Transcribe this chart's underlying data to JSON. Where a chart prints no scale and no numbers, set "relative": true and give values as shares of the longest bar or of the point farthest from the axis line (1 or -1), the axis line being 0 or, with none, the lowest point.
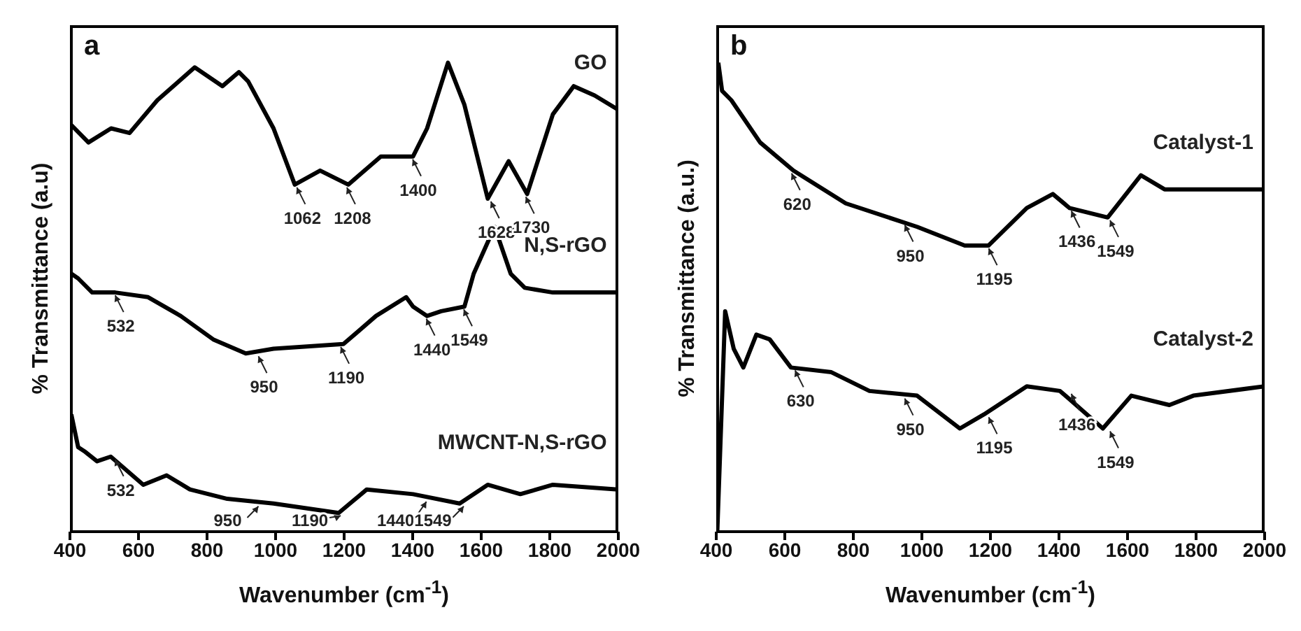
{
  "chart_data": [
    {
      "type": "line",
      "relative": true,
      "xlabel": "Wavenumber (cm$^{-1}$)",
      "ylabel": "% Transmittance (a.u)",
      "xlim": [
        400,
        2000
      ],
      "xticks": [
        400,
        600,
        800,
        1000,
        1200,
        1400,
        1600,
        1800,
        2000
      ],
      "grid": false,
      "legend": false,
      "marker": "none",
      "line_style": "solid",
      "annotations": [
        "a",
        {
          "text": "1062",
          "x": 1062,
          "y": 0.74
        },
        {
          "text": "1208",
          "x": 1208,
          "y": 0.74
        },
        {
          "text": "1400",
          "x": 1400,
          "y": 0.8
        },
        {
          "text": "1628",
          "x": 1628,
          "y": 0.71
        },
        {
          "text": "1730",
          "x": 1730,
          "y": 0.72
        },
        {
          "text": "532",
          "x": 532,
          "y": 0.51
        },
        {
          "text": "950",
          "x": 950,
          "y": 0.38
        },
        {
          "text": "1190",
          "x": 1190,
          "y": 0.4
        },
        {
          "text": "1440",
          "x": 1440,
          "y": 0.46
        },
        {
          "text": "1549",
          "x": 1549,
          "y": 0.48
        },
        {
          "text": "532",
          "x": 532,
          "y": 0.16
        },
        {
          "text": "950",
          "x": 950,
          "y": 0.06
        },
        {
          "text": "1190",
          "x": 1190,
          "y": 0.04
        },
        {
          "text": "1440",
          "x": 1440,
          "y": 0.07
        },
        {
          "text": "1549",
          "x": 1549,
          "y": 0.06
        }
      ],
      "series": [
        {
          "name": "GO",
          "color": "#000000",
          "x": [
            400,
            454,
            520,
            574,
            655,
            764,
            845,
            893,
            920,
            994,
            1056,
            1130,
            1212,
            1307,
            1401,
            1442,
            1503,
            1551,
            1619,
            1680,
            1734,
            1809,
            1870,
            1931,
            1999
          ],
          "values": [
            0.87,
            0.83,
            0.86,
            0.85,
            0.92,
            0.99,
            0.95,
            0.98,
            0.96,
            0.86,
            0.74,
            0.77,
            0.74,
            0.8,
            0.8,
            0.86,
            1.0,
            0.91,
            0.71,
            0.79,
            0.72,
            0.89,
            0.95,
            0.93,
            0.9
          ]
        },
        {
          "name": "N,S-rGO",
          "color": "#000000",
          "x": [
            404,
            424,
            465,
            532,
            628,
            723,
            818,
            913,
            994,
            1198,
            1293,
            1381,
            1401,
            1442,
            1483,
            1551,
            1578,
            1639,
            1686,
            1727,
            1809,
            1999
          ],
          "values": [
            0.55,
            0.54,
            0.51,
            0.51,
            0.5,
            0.46,
            0.41,
            0.38,
            0.39,
            0.4,
            0.46,
            0.5,
            0.48,
            0.46,
            0.47,
            0.48,
            0.55,
            0.65,
            0.55,
            0.52,
            0.51,
            0.51
          ]
        },
        {
          "name": "MWCNT-N,S-rGO",
          "color": "#000000",
          "x": [
            404,
            424,
            445,
            479,
            519,
            614,
            682,
            750,
            859,
            994,
            1184,
            1266,
            1401,
            1537,
            1619,
            1714,
            1809,
            1999
          ],
          "values": [
            0.25,
            0.18,
            0.17,
            0.15,
            0.16,
            0.1,
            0.12,
            0.09,
            0.07,
            0.06,
            0.04,
            0.09,
            0.08,
            0.06,
            0.1,
            0.08,
            0.1,
            0.09
          ]
        }
      ]
    },
    {
      "type": "line",
      "relative": true,
      "xlabel": "Wavenumber (cm$^{-1}$)",
      "ylabel": "% Transmittance (a.u.)",
      "xlim": [
        400,
        2000
      ],
      "xticks": [
        400,
        600,
        800,
        1000,
        1200,
        1400,
        1600,
        1800,
        2000
      ],
      "grid": false,
      "legend": false,
      "marker": "none",
      "line_style": "solid",
      "annotations": [
        "b",
        {
          "text": "620",
          "x": 620,
          "y": 0.77
        },
        {
          "text": "950",
          "x": 950,
          "y": 0.66
        },
        {
          "text": "1195",
          "x": 1195,
          "y": 0.61
        },
        {
          "text": "1436",
          "x": 1436,
          "y": 0.69
        },
        {
          "text": "1549",
          "x": 1549,
          "y": 0.67
        },
        {
          "text": "630",
          "x": 630,
          "y": 0.35
        },
        {
          "text": "950",
          "x": 950,
          "y": 0.29
        },
        {
          "text": "1195",
          "x": 1195,
          "y": 0.25
        },
        {
          "text": "1436",
          "x": 1436,
          "y": 0.3
        },
        {
          "text": "1549",
          "x": 1549,
          "y": 0.22
        }
      ],
      "series": [
        {
          "name": "Catalyst-1",
          "color": "#000000",
          "x": [
            406,
            417,
            444,
            528,
            625,
            778,
            986,
            1125,
            1194,
            1306,
            1382,
            1431,
            1542,
            1639,
            1708,
            2000
          ],
          "values": [
            1.0,
            0.94,
            0.92,
            0.83,
            0.77,
            0.7,
            0.65,
            0.61,
            0.61,
            0.69,
            0.72,
            0.69,
            0.67,
            0.76,
            0.73,
            0.73
          ]
        },
        {
          "name": "Catalyst-2",
          "color": "#000000",
          "x": [
            403,
            426,
            451,
            479,
            517,
            556,
            618,
            736,
            847,
            986,
            1111,
            1181,
            1306,
            1403,
            1528,
            1611,
            1722,
            1792,
            2000
          ],
          "values": [
            0,
            0.47,
            0.39,
            0.35,
            0.42,
            0.41,
            0.35,
            0.34,
            0.3,
            0.29,
            0.22,
            0.25,
            0.31,
            0.3,
            0.22,
            0.29,
            0.27,
            0.29,
            0.31
          ]
        }
      ]
    }
  ]
}
